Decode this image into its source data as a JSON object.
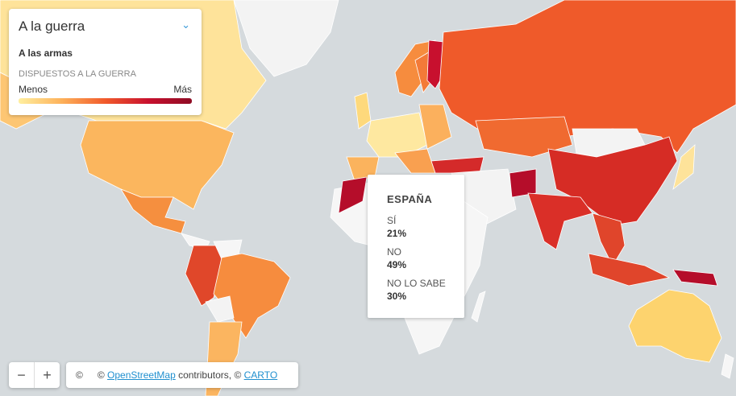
{
  "legend": {
    "title": "A la guerra",
    "subtitle": "A las armas",
    "scale_label": "DISPUESTOS A LA GUERRA",
    "low": "Menos",
    "high": "Más"
  },
  "tooltip": {
    "country": "ESPAÑA",
    "rows": [
      {
        "label": "SÍ",
        "value": "21%"
      },
      {
        "label": "NO",
        "value": "49%"
      },
      {
        "label": "NO LO SABE",
        "value": "30%"
      }
    ]
  },
  "zoom": {
    "out": "−",
    "in": "+"
  },
  "attribution": {
    "info": "©",
    "prefix": "© ",
    "osm": "OpenStreetMap",
    "middle": " contributors, © ",
    "carto": "CARTO"
  }
}
